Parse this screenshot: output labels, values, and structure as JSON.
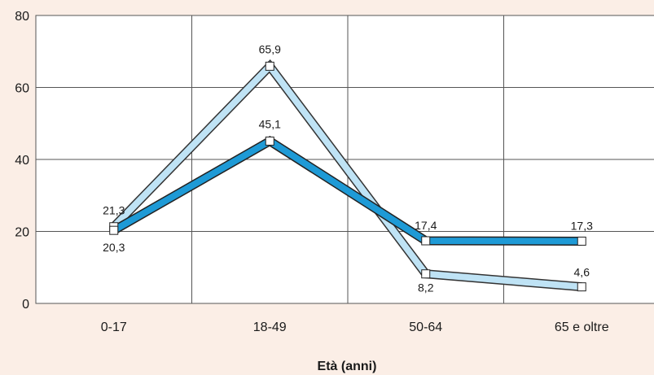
{
  "chart_data": {
    "type": "line",
    "title": "",
    "xlabel": "Età (anni)",
    "ylabel": "",
    "categories": [
      "0-17",
      "18-49",
      "50-64",
      "65 e oltre"
    ],
    "ylim": [
      0,
      80
    ],
    "yticks": [
      0,
      20,
      40,
      60,
      80
    ],
    "grid": true,
    "legend": "none",
    "series": [
      {
        "values": [
          21.3,
          65.9,
          8.2,
          4.6
        ],
        "labels": [
          "21,3",
          "65,9",
          "8,2",
          "4,6"
        ],
        "color": "#bfe3f5",
        "outline": "#333333"
      },
      {
        "values": [
          20.3,
          45.1,
          17.4,
          17.3
        ],
        "labels": [
          "20,3",
          "45,1",
          "17,4",
          "17,3"
        ],
        "color": "#1e9ad6",
        "outline": "#222222"
      }
    ],
    "colors": {
      "background": "#fbeee6",
      "plot_area": "#ffffff",
      "grid": "#555555",
      "marker_fill": "#ffffff"
    }
  }
}
